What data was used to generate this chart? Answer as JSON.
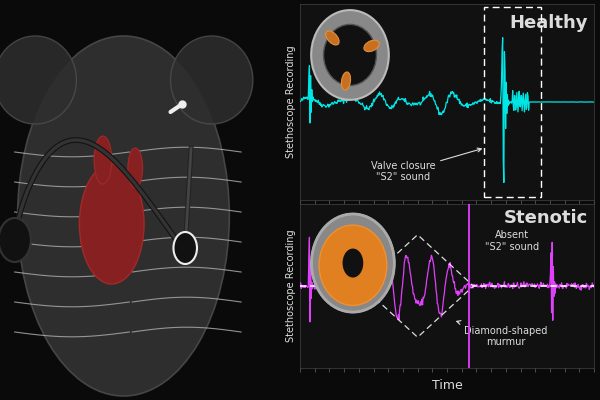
{
  "bg_color": "#0a0a0a",
  "healthy_color": "#00e5e5",
  "stenotic_color": "#e040fb",
  "text_color": "#dddddd",
  "title_healthy": "Healthy",
  "title_stenotic": "Stenotic",
  "ylabel_top": "Stethoscope Recording",
  "ylabel_bottom": "Stethoscope Recording",
  "xlabel": "Time",
  "annotation_healthy": "Valve closure\n\"S2\" sound",
  "annotation_stenotic1": "Absent\n\"S2\" sound",
  "annotation_stenotic2": "Diamond-shaped\nmurmur",
  "font_size_title": 13,
  "font_size_label": 7,
  "font_size_annot": 7
}
